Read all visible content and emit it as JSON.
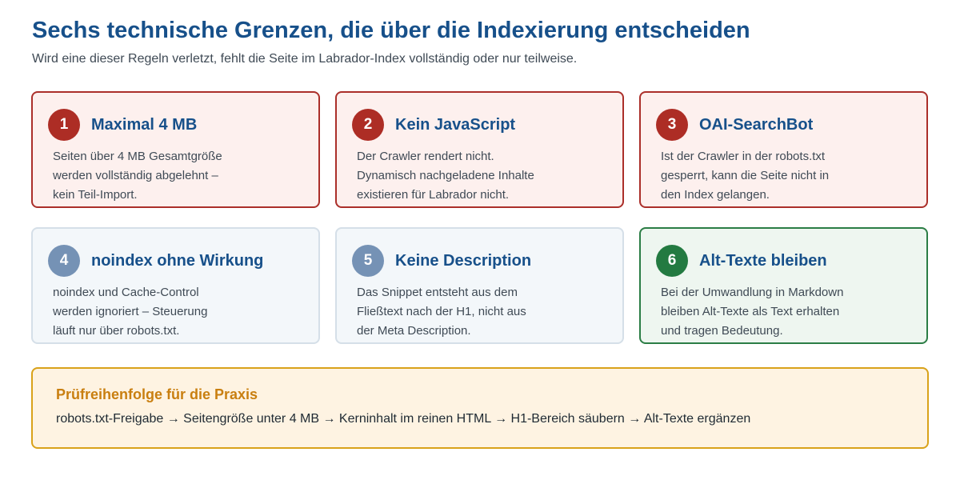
{
  "header": {
    "title": "Sechs technische Grenzen, die über die Indexierung entscheiden",
    "subtitle": "Wird eine dieser Regeln verletzt, fehlt die Seite im Labrador-Index vollständig oder nur teilweise."
  },
  "cards": [
    {
      "number": "1",
      "title": "Maximal 4 MB",
      "lines": [
        "Seiten über 4 MB Gesamtgröße",
        "werden vollständig abgelehnt –",
        "kein Teil-Import."
      ]
    },
    {
      "number": "2",
      "title": "Kein JavaScript",
      "lines": [
        "Der Crawler rendert nicht.",
        "Dynamisch nachgeladene Inhalte",
        "existieren für Labrador nicht."
      ]
    },
    {
      "number": "3",
      "title": "OAI-SearchBot",
      "lines": [
        "Ist der Crawler in der robots.txt",
        "gesperrt, kann die Seite nicht in",
        "den Index gelangen."
      ]
    },
    {
      "number": "4",
      "title": "noindex ohne Wirkung",
      "lines": [
        "noindex und Cache-Control",
        "werden ignoriert – Steuerung",
        "läuft nur über robots.txt."
      ]
    },
    {
      "number": "5",
      "title": "Keine Description",
      "lines": [
        "Das Snippet entsteht aus dem",
        "Fließtext nach der H1, nicht aus",
        "der Meta Description."
      ]
    },
    {
      "number": "6",
      "title": "Alt-Texte bleiben",
      "lines": [
        "Bei der Umwandlung in Markdown",
        "bleiben Alt-Texte als Text erhalten",
        "und tragen Bedeutung."
      ]
    }
  ],
  "praxis": {
    "title": "Prüfreihenfolge für die Praxis",
    "text": "robots.txt-Freigabe → Seitengröße unter 4 MB → Kerninhalt im reinen HTML → H1-Bereich säubern → Alt-Texte ergänzen"
  },
  "colors": {
    "title_blue": "#17508a",
    "badge_red": "#ad2d25",
    "badge_blue": "#7592b5",
    "badge_green": "#237a41",
    "praxis_orange": "#c97f10"
  }
}
